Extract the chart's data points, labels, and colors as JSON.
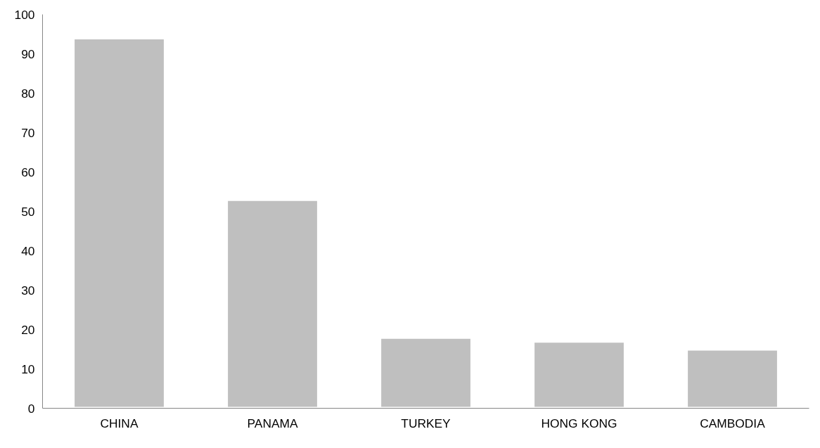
{
  "chart_data": {
    "type": "bar",
    "categories": [
      "CHINA",
      "PANAMA",
      "TURKEY",
      "HONG KONG",
      "CAMBODIA"
    ],
    "values": [
      94,
      53,
      18,
      17,
      15
    ],
    "color": "#bfbfbf",
    "ylim": [
      0,
      100
    ],
    "yticks": [
      0,
      10,
      20,
      30,
      40,
      50,
      60,
      70,
      80,
      90,
      100
    ],
    "grid": false
  }
}
